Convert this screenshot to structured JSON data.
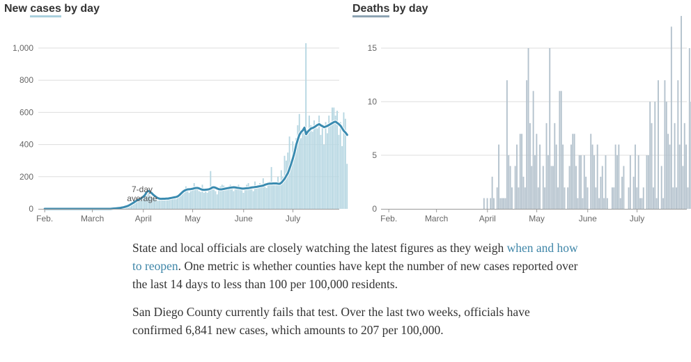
{
  "cases": {
    "title_pre": "New ",
    "title_hl": "cases",
    "title_post": " by day",
    "hl_color": "#a9cfdd",
    "avg_label_1": "7-day",
    "avg_label_2": "average"
  },
  "deaths": {
    "title_pre": "",
    "title_hl": "Deaths",
    "title_post": " by day",
    "hl_color": "#8da3b3"
  },
  "article": {
    "p1_a": "State and local officials are closely watching the latest figures as they weigh ",
    "p1_link": "when and how to reopen",
    "p1_b": ". One metric is whether counties have kept the number of new cases reported over the last 14 days to less than 100 per 100,000 residents.",
    "p2": "San Diego County currently fails that test. Over the last two weeks, officials have confirmed 6,841 new cases, which amounts to 207 per 100,000."
  },
  "chart_data": [
    {
      "type": "bar",
      "name": "cases",
      "x_start": "2020-02-01",
      "x_ticks": [
        {
          "label": "Feb.",
          "date": "2020-02-01"
        },
        {
          "label": "March",
          "date": "2020-03-01"
        },
        {
          "label": "April",
          "date": "2020-04-01"
        },
        {
          "label": "May",
          "date": "2020-05-01"
        },
        {
          "label": "June",
          "date": "2020-06-01"
        },
        {
          "label": "July",
          "date": "2020-07-01"
        }
      ],
      "y_ticks": [
        {
          "label": "0",
          "value": 0
        },
        {
          "label": "200",
          "value": 200
        },
        {
          "label": "400",
          "value": 400
        },
        {
          "label": "600",
          "value": 600
        },
        {
          "label": "800",
          "value": 800
        },
        {
          "label": "1,000",
          "value": 1000
        }
      ],
      "ylim": [
        0,
        1000
      ],
      "bar_color": "#b7d7e2",
      "avg_color": "#3a8bb0",
      "grid": true,
      "values": [
        0,
        0,
        0,
        0,
        0,
        0,
        0,
        0,
        0,
        0,
        0,
        0,
        0,
        0,
        0,
        0,
        0,
        0,
        0,
        0,
        0,
        0,
        0,
        0,
        0,
        0,
        0,
        0,
        0,
        0,
        0,
        0,
        0,
        0,
        0,
        0,
        0,
        0,
        0,
        0,
        0,
        0,
        2,
        3,
        3,
        5,
        6,
        8,
        10,
        14,
        18,
        24,
        28,
        35,
        40,
        48,
        55,
        60,
        58,
        62,
        70,
        75,
        80,
        92,
        85,
        70,
        68,
        60,
        55,
        50,
        58,
        64,
        70,
        65,
        60,
        58,
        62,
        68,
        70,
        65,
        60,
        72,
        80,
        90,
        115,
        125,
        140,
        130,
        100,
        110,
        125,
        160,
        130,
        120,
        110,
        105,
        150,
        100,
        120,
        100,
        130,
        235,
        130,
        120,
        110,
        90,
        125,
        140,
        150,
        145,
        130,
        120,
        140,
        150,
        130,
        110,
        125,
        140,
        150,
        135,
        120,
        100,
        130,
        150,
        160,
        140,
        130,
        110,
        170,
        140,
        150,
        160,
        140,
        190,
        140,
        130,
        160,
        170,
        260,
        150,
        160,
        170,
        200,
        170,
        240,
        200,
        330,
        300,
        350,
        450,
        300,
        420,
        360,
        440,
        520,
        590,
        440,
        490,
        500,
        1030,
        490,
        580,
        520,
        480,
        550,
        520,
        500,
        580,
        460,
        510,
        400,
        540,
        470,
        580,
        540,
        630,
        630,
        580,
        610,
        460,
        540,
        390,
        600,
        560,
        280
      ],
      "avg": [
        0,
        0,
        0,
        0,
        0,
        0,
        0,
        0,
        0,
        0,
        0,
        0,
        0,
        0,
        0,
        0,
        0,
        0,
        0,
        0,
        0,
        0,
        0,
        0,
        0,
        0,
        0,
        0,
        0,
        0,
        0,
        0,
        0,
        0,
        0,
        0,
        0,
        0,
        0,
        0,
        0,
        1,
        2,
        3,
        4,
        5,
        6,
        8,
        10,
        13,
        16,
        20,
        26,
        32,
        38,
        45,
        52,
        57,
        62,
        68,
        76,
        86,
        104,
        112,
        106,
        98,
        88,
        80,
        72,
        66,
        63,
        62,
        63,
        63,
        64,
        64,
        66,
        68,
        70,
        72,
        74,
        78,
        86,
        96,
        106,
        113,
        118,
        121,
        122,
        123,
        125,
        128,
        130,
        130,
        127,
        122,
        119,
        118,
        119,
        120,
        122,
        127,
        133,
        134,
        131,
        126,
        122,
        121,
        122,
        124,
        126,
        128,
        130,
        132,
        133,
        134,
        133,
        131,
        130,
        128,
        126,
        126,
        127,
        128,
        129,
        131,
        133,
        134,
        136,
        137,
        139,
        141,
        143,
        145,
        150,
        153,
        156,
        157,
        157,
        158,
        158,
        158,
        156,
        156,
        163,
        175,
        188,
        206,
        224,
        252,
        282,
        315,
        352,
        398,
        432,
        462,
        478,
        488,
        505,
        464,
        480,
        490,
        500,
        503,
        508,
        515,
        522,
        527,
        519,
        514,
        508,
        512,
        516,
        522,
        528,
        534,
        540,
        542,
        534,
        526,
        516,
        500,
        484,
        474,
        460
      ]
    },
    {
      "type": "bar",
      "name": "deaths",
      "x_start": "2020-02-01",
      "x_ticks": [
        {
          "label": "Feb.",
          "date": "2020-02-01"
        },
        {
          "label": "March",
          "date": "2020-03-01"
        },
        {
          "label": "April",
          "date": "2020-04-01"
        },
        {
          "label": "May",
          "date": "2020-05-01"
        },
        {
          "label": "June",
          "date": "2020-06-01"
        },
        {
          "label": "July",
          "date": "2020-07-01"
        }
      ],
      "y_ticks": [
        {
          "label": "0",
          "value": 0
        },
        {
          "label": "5",
          "value": 5
        },
        {
          "label": "10",
          "value": 10
        },
        {
          "label": "15",
          "value": 15
        }
      ],
      "ylim": [
        0,
        16.5
      ],
      "bar_color": "#b4c2cd",
      "grid": true,
      "values": [
        0,
        0,
        0,
        0,
        0,
        0,
        0,
        0,
        0,
        0,
        0,
        0,
        0,
        0,
        0,
        0,
        0,
        0,
        0,
        0,
        0,
        0,
        0,
        0,
        0,
        0,
        0,
        0,
        0,
        0,
        0,
        0,
        0,
        0,
        0,
        0,
        0,
        0,
        0,
        0,
        0,
        0,
        0,
        0,
        0,
        0,
        0,
        0,
        0,
        0,
        0,
        0,
        0,
        0,
        0,
        0,
        0,
        0,
        1,
        0,
        1,
        0,
        1,
        3,
        1,
        0,
        2,
        6,
        1,
        1,
        1,
        1,
        12,
        5,
        4,
        2,
        0,
        4,
        6,
        2,
        7,
        7,
        3,
        2,
        12,
        15,
        8,
        4,
        11,
        5,
        7,
        2,
        6,
        0,
        4,
        2,
        8,
        5,
        15,
        4,
        4,
        8,
        6,
        2,
        11,
        11,
        6,
        2,
        0,
        2,
        4,
        6,
        7,
        7,
        4,
        1,
        5,
        5,
        1,
        5,
        3,
        2,
        0,
        7,
        6,
        5,
        2,
        6,
        1,
        3,
        4,
        1,
        5,
        1,
        0,
        0,
        2,
        2,
        6,
        5,
        6,
        1,
        3,
        4,
        0,
        0,
        2,
        5,
        0,
        3,
        6,
        2,
        5,
        1,
        1,
        2,
        0,
        5,
        5,
        10,
        8,
        2,
        10,
        1,
        12,
        0,
        4,
        1,
        12,
        10,
        7,
        6,
        17,
        2,
        8,
        2,
        12,
        6,
        18,
        4,
        8,
        6,
        2,
        15,
        10,
        4,
        12,
        5
      ]
    }
  ]
}
